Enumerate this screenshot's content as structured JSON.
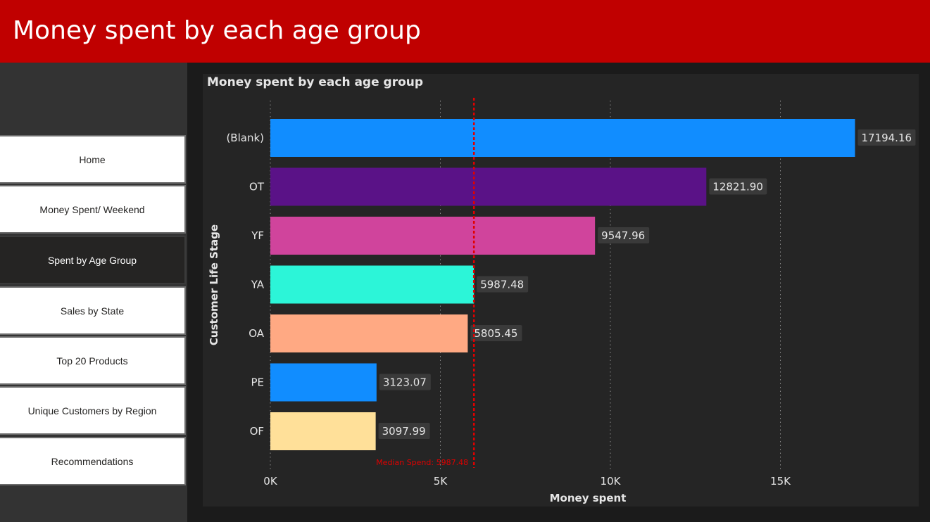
{
  "header": {
    "title": "Money spent by each age group"
  },
  "sidebar": {
    "items": [
      {
        "label": "Home",
        "active": false
      },
      {
        "label": "Money Spent/ Weekend",
        "active": false
      },
      {
        "label": "Spent by Age Group",
        "active": true
      },
      {
        "label": "Sales by State",
        "active": false
      },
      {
        "label": "Top 20 Products",
        "active": false
      },
      {
        "label": "Unique Customers by Region",
        "active": false
      },
      {
        "label": "Recommendations",
        "active": false
      }
    ]
  },
  "chart_data": {
    "type": "bar",
    "orientation": "horizontal",
    "title": "Money spent by each age group",
    "xlabel": "Money spent",
    "ylabel": "Customer Life Stage",
    "categories": [
      "(Blank)",
      "OT",
      "YF",
      "YA",
      "OA",
      "PE",
      "OF"
    ],
    "values": [
      17194.16,
      12821.9,
      9547.96,
      5987.48,
      5805.45,
      3123.07,
      3097.99
    ],
    "value_labels": [
      "17194.16",
      "12821.90",
      "9547.96",
      "5987.48",
      "5805.45",
      "3123.07",
      "3097.99"
    ],
    "colors": [
      "#118dff",
      "#5a1287",
      "#d0449c",
      "#2cf5d8",
      "#ffa983",
      "#118dff",
      "#ffe099"
    ],
    "xlim": [
      0,
      18000
    ],
    "xticks": [
      0,
      5000,
      10000,
      15000
    ],
    "xtick_labels": [
      "0K",
      "5K",
      "10K",
      "15K"
    ],
    "grid": true,
    "reference_line": {
      "value": 5987.48,
      "label": "Median Spend: 5987.48",
      "color": "#e00000"
    }
  }
}
